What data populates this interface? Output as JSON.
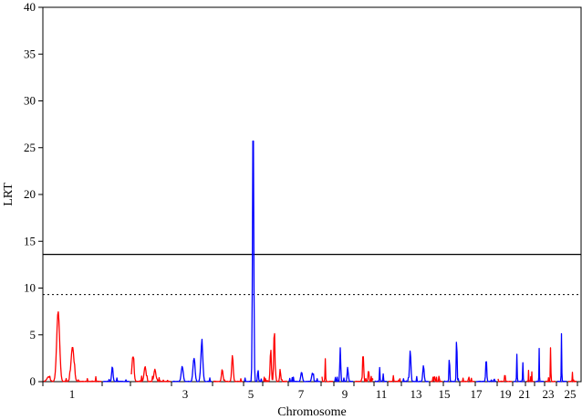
{
  "chart_data": {
    "type": "line",
    "title": "",
    "xlabel": "Chromosome",
    "ylabel": "LRT",
    "ylim": [
      0,
      40
    ],
    "y_ticks": [
      "0",
      "5",
      "10",
      "15",
      "20",
      "25",
      "30",
      "35",
      "40"
    ],
    "x_tick_labels": [
      "1",
      "3",
      "5",
      "7",
      "9",
      "11",
      "13",
      "15",
      "17",
      "19",
      "21",
      "23",
      "25"
    ],
    "colors": {
      "odd": "#ff0000",
      "even": "#0000ff"
    },
    "thresholds": [
      {
        "value": 13.6,
        "style": "solid"
      },
      {
        "value": 9.3,
        "style": "dotted"
      }
    ],
    "chromosomes": [
      {
        "name": "1",
        "peaks": [
          [
            0.25,
            7.5
          ],
          [
            0.5,
            3.7
          ],
          [
            0.08,
            0.5
          ]
        ]
      },
      {
        "name": "2",
        "peaks": [
          [
            0.35,
            1.6
          ]
        ]
      },
      {
        "name": "3",
        "peaks": [
          [
            0.04,
            2.7
          ],
          [
            0.35,
            1.6
          ],
          [
            0.6,
            1.3
          ]
        ]
      },
      {
        "name": "4",
        "peaks": [
          [
            0.25,
            1.6
          ],
          [
            0.55,
            2.5
          ],
          [
            0.75,
            4.1
          ]
        ]
      },
      {
        "name": "5",
        "peaks": [
          [
            0.3,
            1.3
          ],
          [
            0.65,
            2.8
          ]
        ]
      },
      {
        "name": "6",
        "peaks": [
          [
            0.5,
            29.0
          ],
          [
            0.78,
            1.3
          ]
        ]
      },
      {
        "name": "7",
        "peaks": [
          [
            0.3,
            3.5
          ],
          [
            0.45,
            5.1
          ],
          [
            0.7,
            1.0
          ]
        ]
      },
      {
        "name": "8",
        "peaks": [
          [
            0.4,
            1.0
          ],
          [
            0.75,
            0.9
          ]
        ]
      },
      {
        "name": "9",
        "peaks": [
          [
            0.3,
            2.4
          ]
        ]
      },
      {
        "name": "10",
        "peaks": [
          [
            0.3,
            3.6
          ],
          [
            0.7,
            1.5
          ]
        ]
      },
      {
        "name": "11",
        "peaks": [
          [
            0.45,
            3.3
          ],
          [
            0.75,
            1.3
          ]
        ]
      },
      {
        "name": "12",
        "peaks": [
          [
            0.4,
            1.5
          ],
          [
            0.7,
            0.8
          ]
        ]
      },
      {
        "name": "13",
        "peaks": [
          [
            0.4,
            0.6
          ]
        ]
      },
      {
        "name": "14",
        "peaks": [
          [
            0.3,
            3.3
          ],
          [
            0.8,
            1.7
          ]
        ]
      },
      {
        "name": "15",
        "peaks": [
          [
            0.3,
            0.5
          ]
        ]
      },
      {
        "name": "16",
        "peaks": [
          [
            0.35,
            2.8
          ],
          [
            0.85,
            5.2
          ]
        ]
      },
      {
        "name": "17",
        "peaks": [
          [
            0.6,
            0.5
          ]
        ]
      },
      {
        "name": "18",
        "peaks": [
          [
            0.5,
            2.5
          ]
        ]
      },
      {
        "name": "19",
        "peaks": [
          [
            0.5,
            0.9
          ]
        ]
      },
      {
        "name": "20",
        "peaks": [
          [
            0.3,
            2.9
          ],
          [
            0.85,
            2.0
          ]
        ]
      },
      {
        "name": "21",
        "peaks": [
          [
            0.3,
            1.2
          ],
          [
            0.75,
            0.6
          ]
        ]
      },
      {
        "name": "22",
        "peaks": [
          [
            0.45,
            3.5
          ]
        ]
      },
      {
        "name": "23",
        "peaks": [
          [
            0.5,
            3.6
          ]
        ]
      },
      {
        "name": "24",
        "peaks": [
          [
            0.45,
            4.6
          ]
        ]
      },
      {
        "name": "25",
        "peaks": [
          [
            0.5,
            1.0
          ]
        ]
      }
    ]
  }
}
